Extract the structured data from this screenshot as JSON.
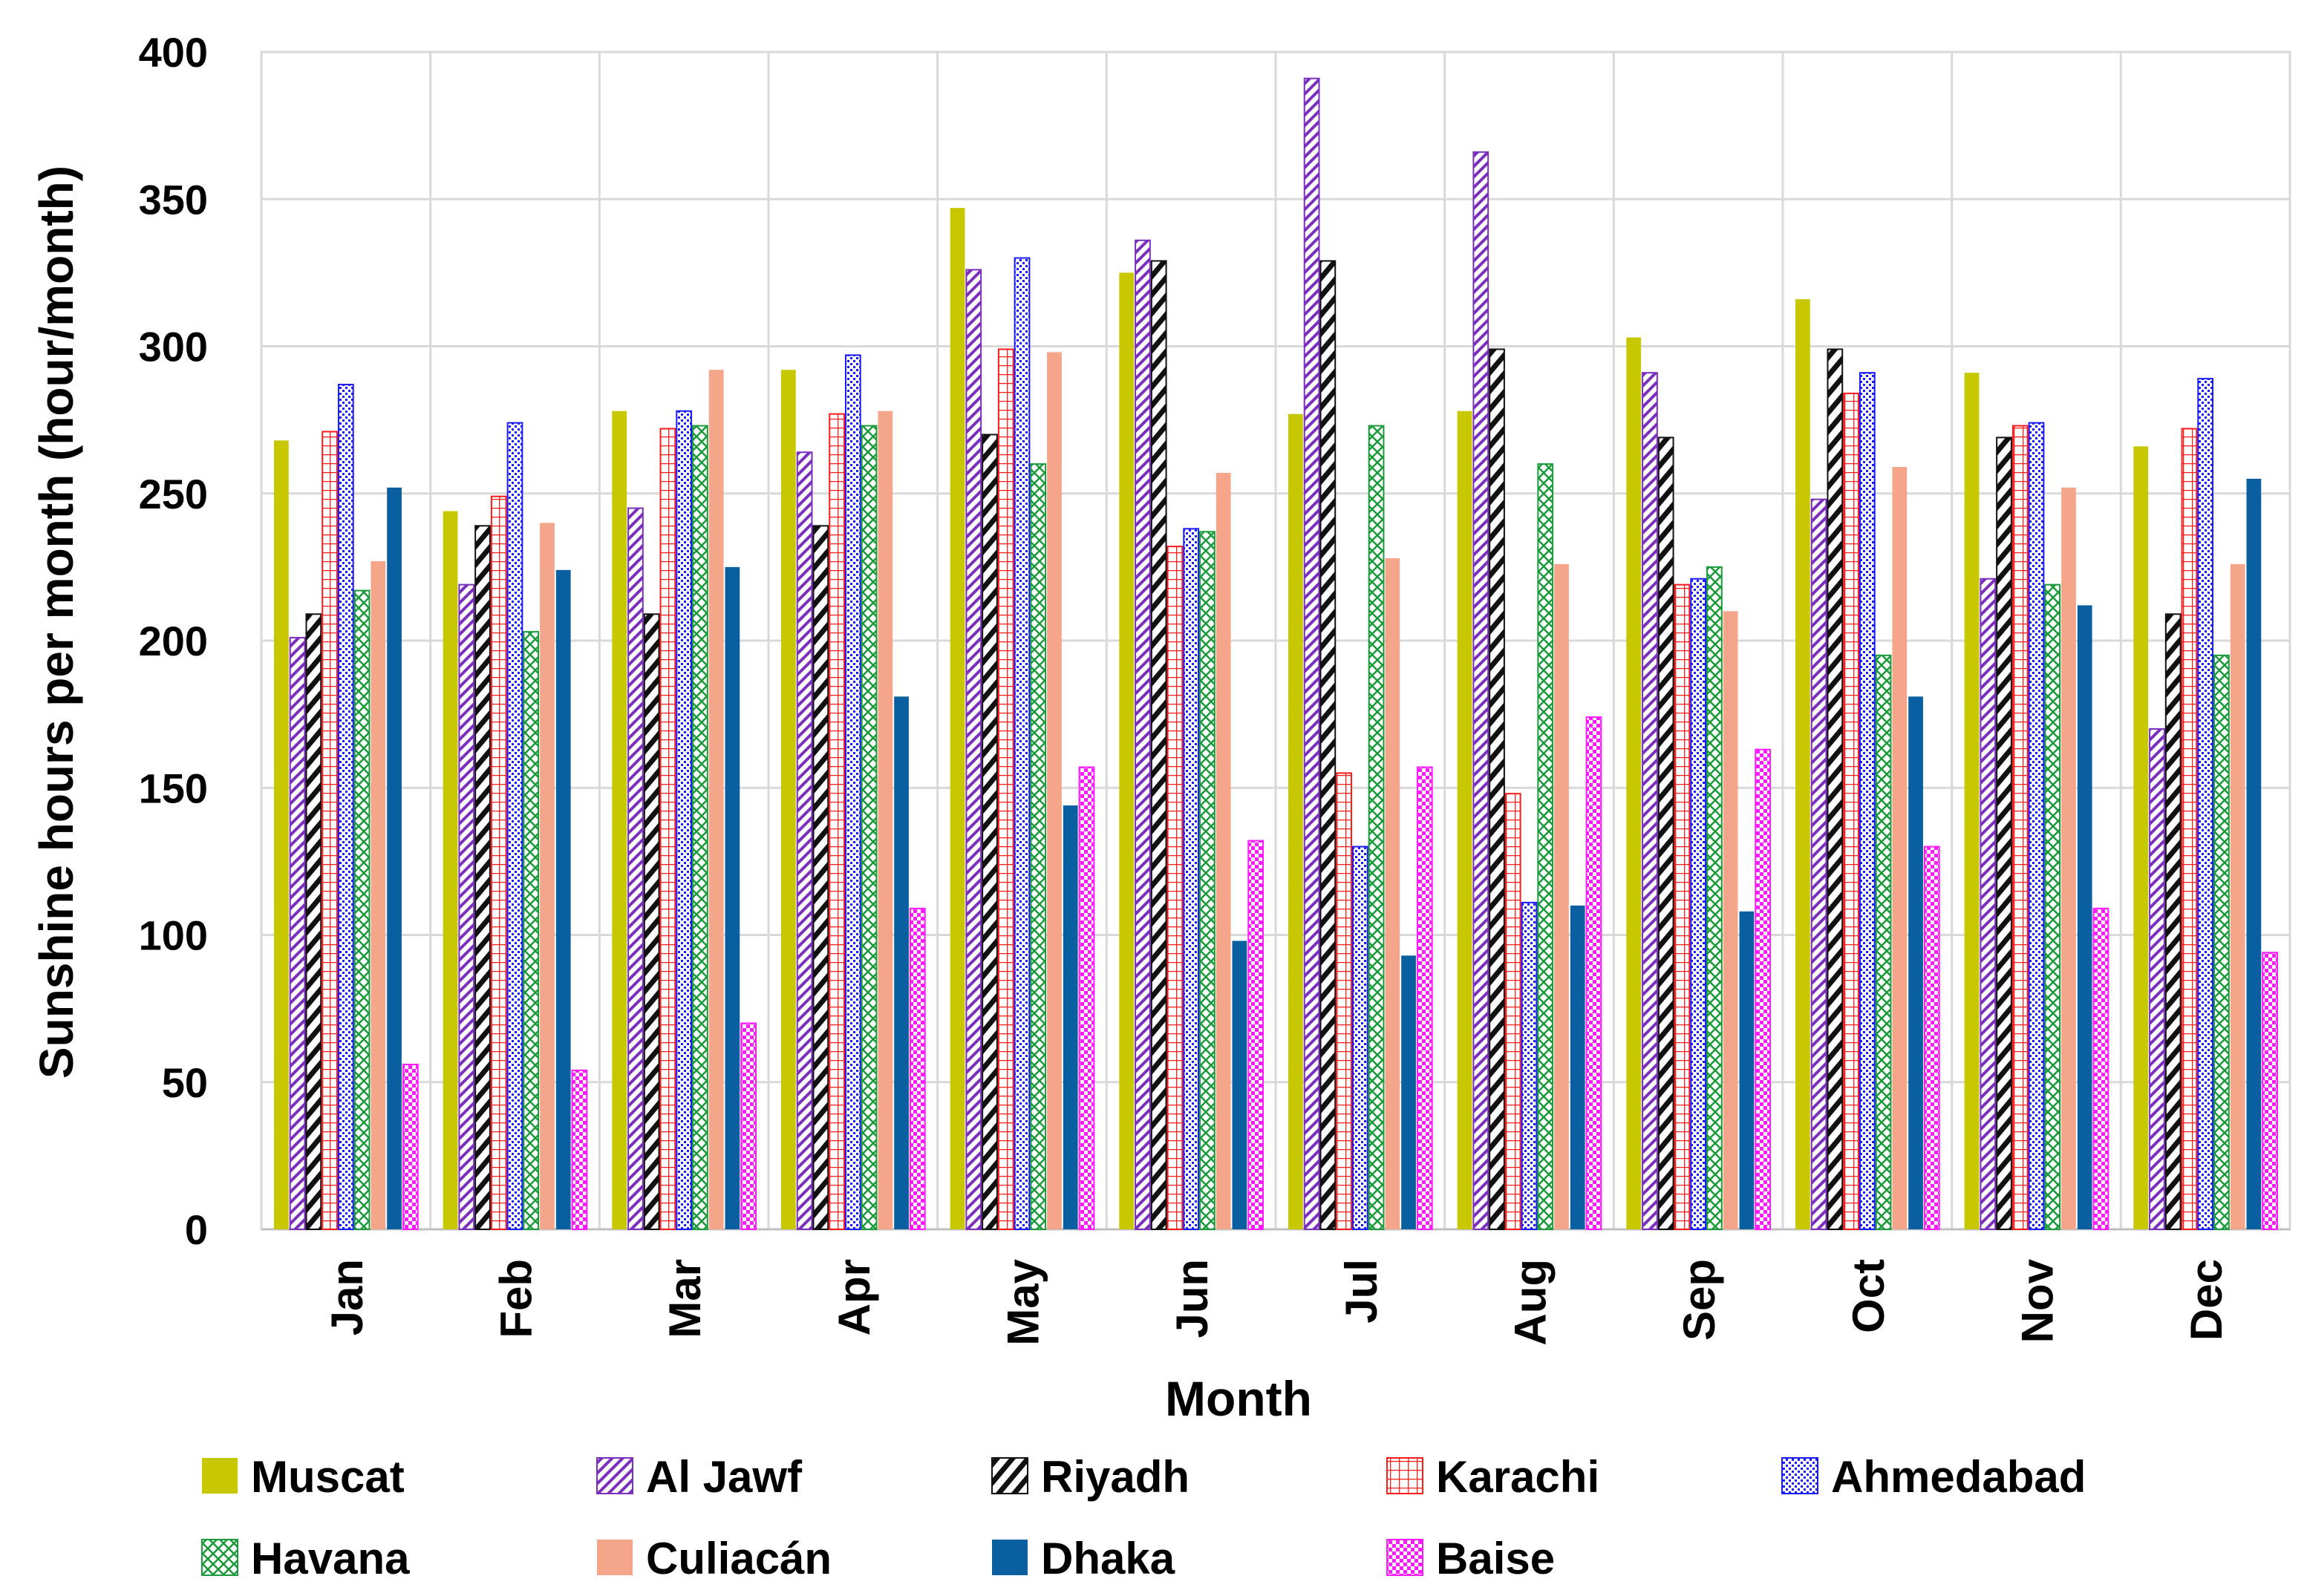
{
  "chart_data": {
    "type": "bar",
    "title": "",
    "xlabel": "Month",
    "ylabel": "Sunshine hours per month (hour/month)",
    "ylim": [
      0,
      400
    ],
    "yticks": [
      0,
      50,
      100,
      150,
      200,
      250,
      300,
      350,
      400
    ],
    "grid": true,
    "legend_position": "bottom",
    "categories": [
      "Jan",
      "Feb",
      "Mar",
      "Apr",
      "May",
      "Jun",
      "Jul",
      "Aug",
      "Sep",
      "Oct",
      "Nov",
      "Dec"
    ],
    "series": [
      {
        "name": "Muscat",
        "pattern": "solid",
        "color": "#c8c800",
        "values": [
          268,
          244,
          278,
          292,
          347,
          325,
          277,
          278,
          303,
          316,
          291,
          266
        ]
      },
      {
        "name": "Al Jawf",
        "pattern": "diag-thin",
        "color": "#7b2fbe",
        "values": [
          201,
          219,
          245,
          264,
          326,
          336,
          391,
          366,
          291,
          248,
          221,
          170
        ]
      },
      {
        "name": "Riyadh",
        "pattern": "diag-thick",
        "color": "#111111",
        "values": [
          209,
          239,
          209,
          239,
          270,
          329,
          329,
          299,
          269,
          299,
          269,
          209
        ]
      },
      {
        "name": "Karachi",
        "pattern": "grid",
        "color": "#ff1a1a",
        "values": [
          271,
          249,
          272,
          277,
          299,
          232,
          155,
          148,
          219,
          284,
          273,
          272
        ]
      },
      {
        "name": "Ahmedabad",
        "pattern": "dots",
        "color": "#1a1aff",
        "values": [
          287,
          274,
          278,
          297,
          330,
          238,
          130,
          111,
          221,
          291,
          274,
          289
        ]
      },
      {
        "name": "Havana",
        "pattern": "cross",
        "color": "#1a9a3a",
        "values": [
          217,
          203,
          273,
          273,
          260,
          237,
          273,
          260,
          225,
          195,
          219,
          195
        ]
      },
      {
        "name": "Culiacán",
        "pattern": "solid",
        "color": "#f4a58a",
        "values": [
          227,
          240,
          292,
          278,
          298,
          257,
          228,
          226,
          210,
          259,
          252,
          226
        ]
      },
      {
        "name": "Dhaka",
        "pattern": "solid",
        "color": "#0a5fa0",
        "values": [
          252,
          224,
          225,
          181,
          144,
          98,
          93,
          110,
          108,
          181,
          212,
          255
        ]
      },
      {
        "name": "Baise",
        "pattern": "checker",
        "color": "#ff1aff",
        "values": [
          56,
          54,
          70,
          109,
          157,
          132,
          157,
          174,
          163,
          130,
          109,
          94
        ]
      }
    ]
  }
}
